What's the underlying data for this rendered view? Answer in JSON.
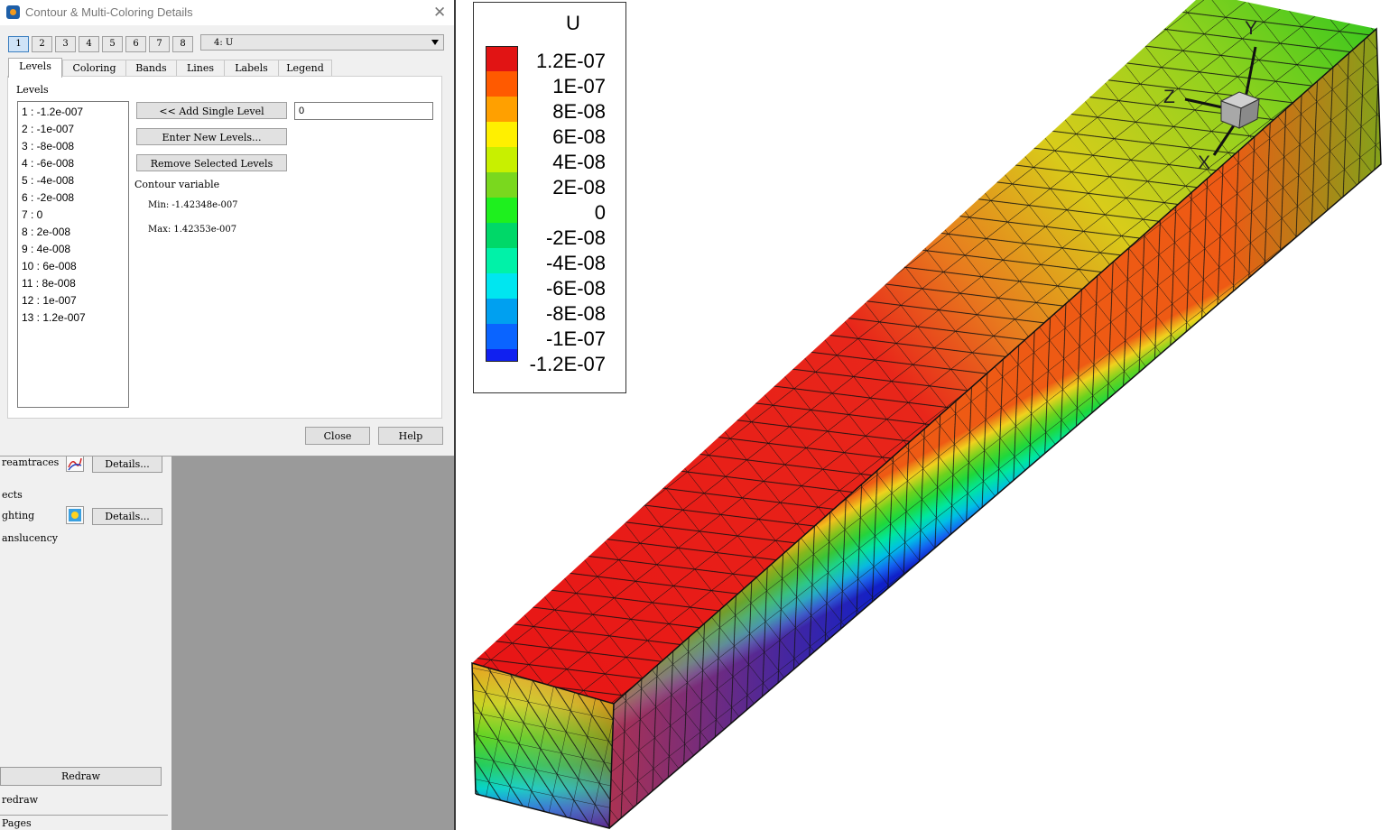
{
  "dialog": {
    "title": "Contour & Multi-Coloring Details",
    "group_buttons": [
      "1",
      "2",
      "3",
      "4",
      "5",
      "6",
      "7",
      "8"
    ],
    "active_group": "1",
    "variable_select": "4: U",
    "tabs": [
      "Levels",
      "Coloring",
      "Bands",
      "Lines",
      "Labels",
      "Legend"
    ],
    "active_tab": "Levels",
    "levels_caption": "Levels",
    "levels": [
      "1 : -1.2e-007",
      "2 : -1e-007",
      "3 : -8e-008",
      "4 : -6e-008",
      "5 : -4e-008",
      "6 : -2e-008",
      "7 : 0",
      "8 : 2e-008",
      "9 : 4e-008",
      "10 : 6e-008",
      "11 : 8e-008",
      "12 : 1e-007",
      "13 : 1.2e-007"
    ],
    "add_single_level_label": "<< Add Single Level",
    "level_value": "0",
    "enter_new_levels_label": "Enter New Levels...",
    "remove_selected_label": "Remove Selected Levels",
    "contour_variable_label": "Contour variable",
    "min_text": "Min: -1.42348e-007",
    "max_text": "Max: 1.42353e-007",
    "close_label": "Close",
    "help_label": "Help"
  },
  "side_panel": {
    "streamtraces_label": "reamtraces",
    "details_label": "Details...",
    "effects_label": "ects",
    "lighting_label": "ghting",
    "translucency_label": "anslucency",
    "redraw_button": "Redraw",
    "auto_redraw_label": "redraw",
    "pages_label": "Pages"
  },
  "legend": {
    "title": "U",
    "entries": [
      {
        "label": "1.2E-07",
        "color": "#e11414"
      },
      {
        "label": "1E-07",
        "color": "#ff5a00"
      },
      {
        "label": "8E-08",
        "color": "#ffa000"
      },
      {
        "label": "6E-08",
        "color": "#fff000"
      },
      {
        "label": "4E-08",
        "color": "#c8f000"
      },
      {
        "label": "2E-08",
        "color": "#7ad81e"
      },
      {
        "label": "0",
        "color": "#1ef01e"
      },
      {
        "label": "-2E-08",
        "color": "#00d868"
      },
      {
        "label": "-4E-08",
        "color": "#00f2a8"
      },
      {
        "label": "-6E-08",
        "color": "#00e6f0"
      },
      {
        "label": "-8E-08",
        "color": "#00a0f0"
      },
      {
        "label": "-1E-07",
        "color": "#0a64ff"
      },
      {
        "label": "-1.2E-07",
        "color": "#1020f0"
      }
    ]
  },
  "axes": {
    "x": "X",
    "y": "Y",
    "z": "Z"
  }
}
